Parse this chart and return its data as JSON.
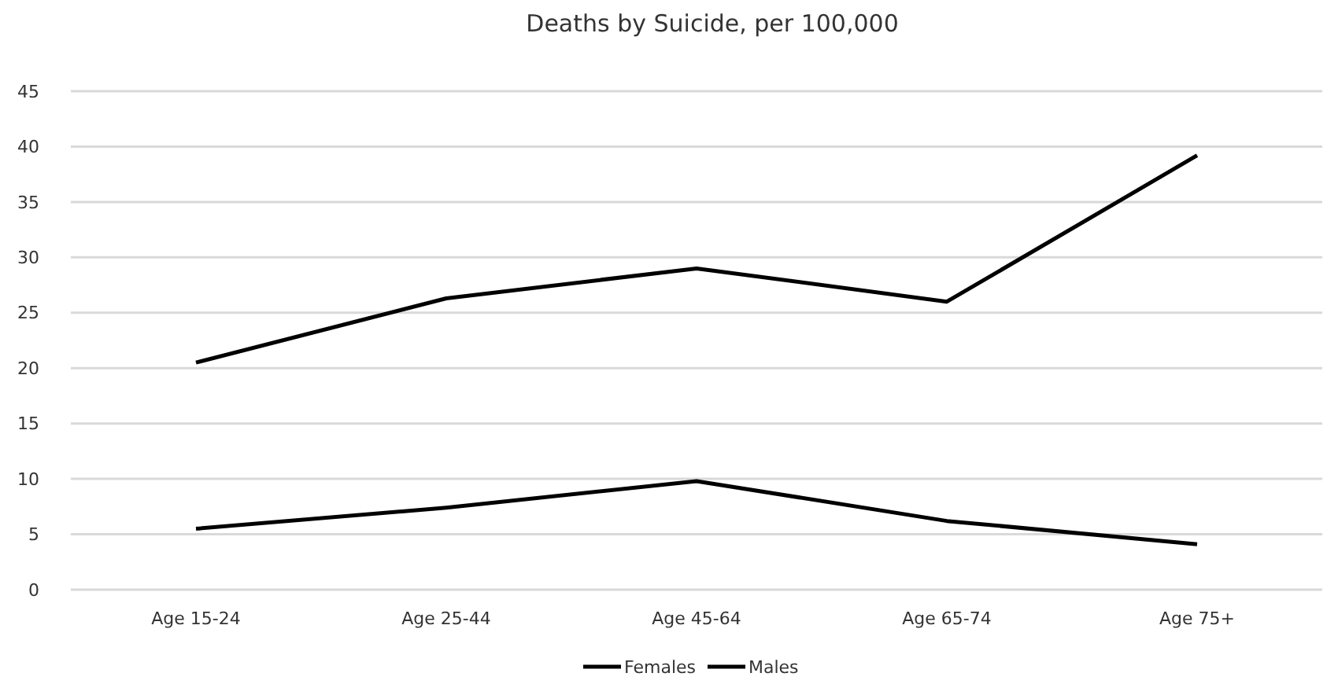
{
  "chart_data": {
    "type": "line",
    "title": "Deaths by Suicide, per 100,000",
    "categories": [
      "Age 15-24",
      "Age 25-44",
      "Age 45-64",
      "Age 65-74",
      "Age 75+"
    ],
    "series": [
      {
        "name": "Females",
        "color": "#000000",
        "values": [
          5.5,
          7.4,
          9.8,
          6.2,
          4.1
        ]
      },
      {
        "name": "Males",
        "color": "#000000",
        "values": [
          20.5,
          26.3,
          29.0,
          26.0,
          39.2
        ]
      }
    ],
    "ylim": [
      0,
      45
    ],
    "yticks": [
      0,
      5,
      10,
      15,
      20,
      25,
      30,
      35,
      40,
      45
    ],
    "grid": "y",
    "legend": "bottom",
    "marker": "none",
    "line_style": "solid"
  }
}
